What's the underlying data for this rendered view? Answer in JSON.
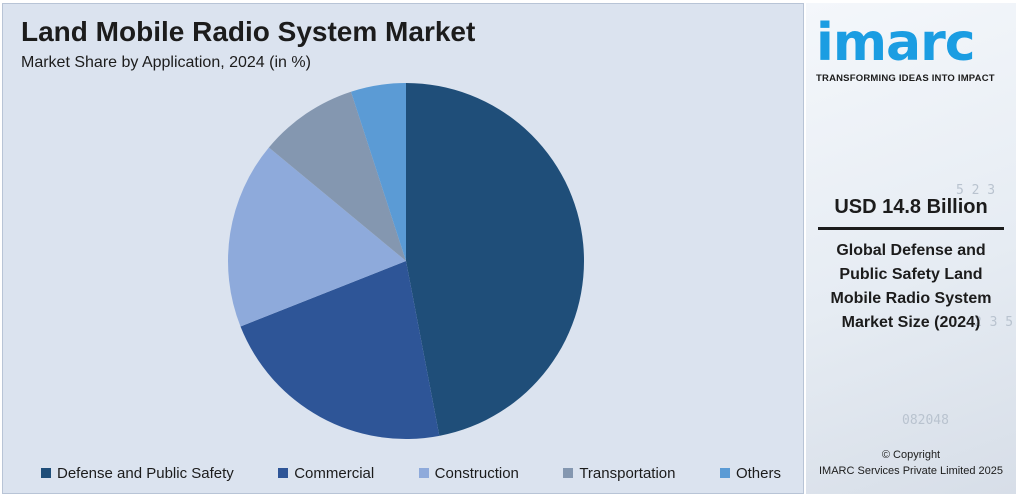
{
  "chart_data": {
    "type": "pie",
    "title": "Land Mobile Radio System Market",
    "subtitle": "Market Share by Application, 2024 (in %)",
    "slices": [
      {
        "label": "Defense and Public Safety",
        "value": 47,
        "color": "#1f4e79"
      },
      {
        "label": "Commercial",
        "value": 22,
        "color": "#2e5597"
      },
      {
        "label": "Construction",
        "value": 17,
        "color": "#8eaadb"
      },
      {
        "label": "Transportation",
        "value": 9,
        "color": "#8497b0"
      },
      {
        "label": "Others",
        "value": 5,
        "color": "#5b9bd5"
      }
    ],
    "legend_position": "bottom"
  },
  "brand": {
    "logo": "imarc",
    "tagline": "TRANSFORMING IDEAS INTO IMPACT",
    "color": "#1b9de2"
  },
  "highlight": {
    "value": "USD 14.8 Billion",
    "description": "Global Defense and Public Safety Land Mobile Radio System Market Size (2024)"
  },
  "footer": {
    "copyright_line1": "© Copyright",
    "copyright_line2": "IMARC Services Private Limited 2025"
  }
}
